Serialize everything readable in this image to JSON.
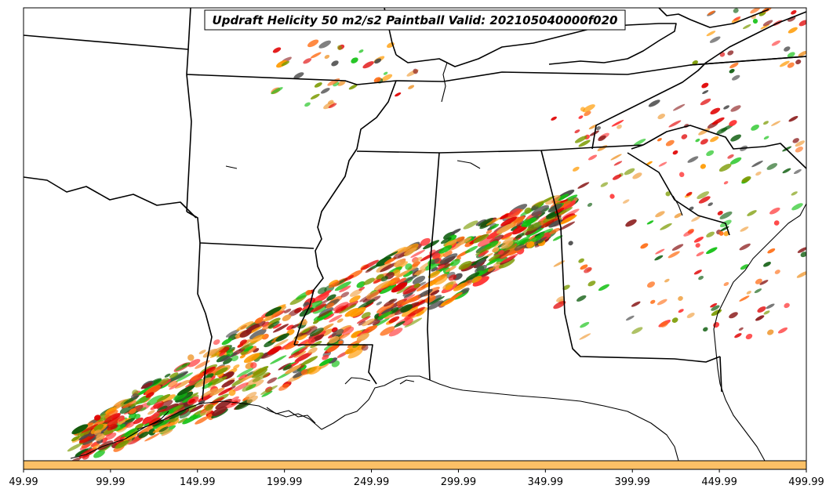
{
  "title": "Updraft Helicity 50 m2/s2 Paintball Valid: 202105040000f020",
  "colorbar": {
    "tick_labels": [
      "49.99",
      "99.99",
      "149.99",
      "199.99",
      "249.99",
      "299.99",
      "349.99",
      "399.99",
      "449.99",
      "499.99"
    ],
    "color": "#fcc066"
  },
  "member_colors": [
    "#e00000",
    "#ff6a10",
    "#ff9a00",
    "#7a9a00",
    "#10c010",
    "#0a5a0a",
    "#8a1a1a",
    "#ff3030",
    "#4a4a4a",
    "#f0a040"
  ]
}
